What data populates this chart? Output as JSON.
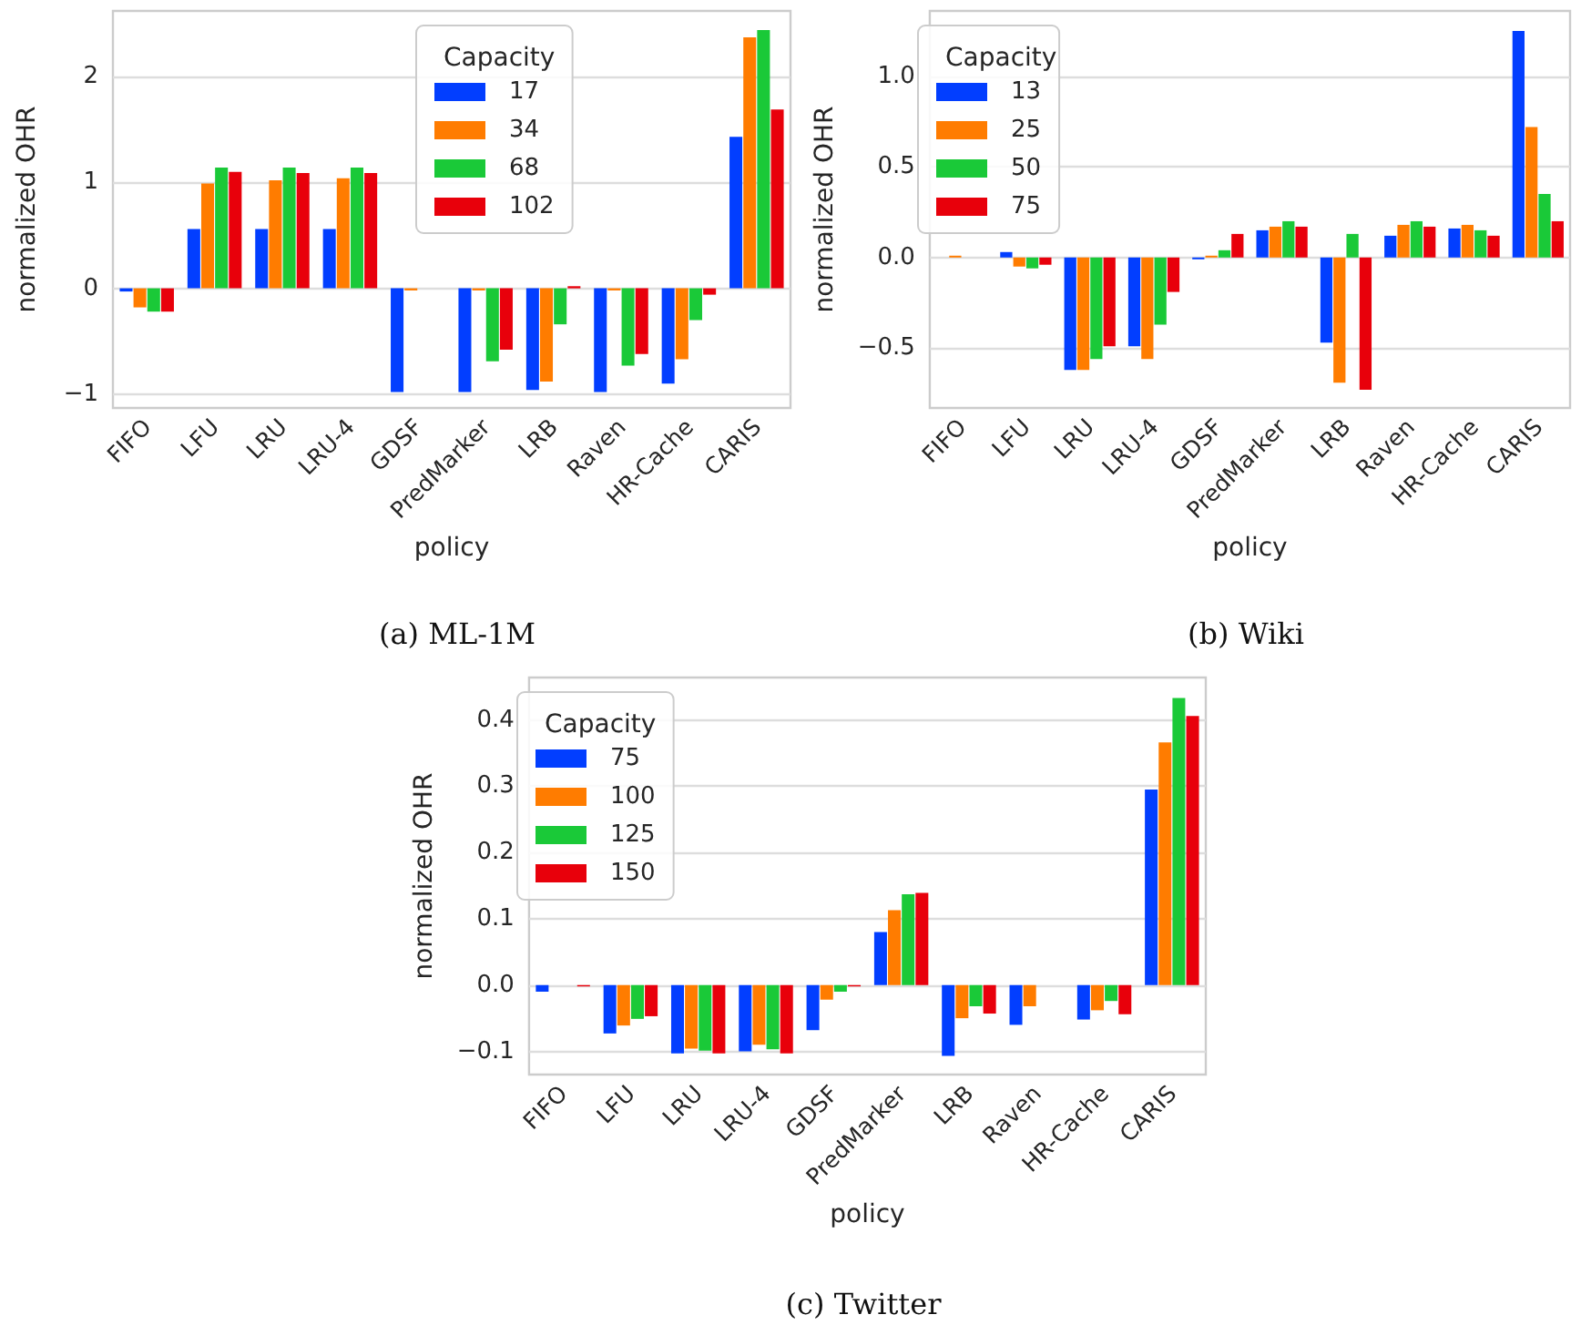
{
  "chart_data": [
    {
      "type": "bar",
      "annotations": [
        "(a) ML-1M"
      ],
      "xlabel": "policy",
      "ylabel": "normalized OHR",
      "legend_title": "Capacity",
      "legend": "top",
      "grid": "y",
      "categories": [
        "FIFO",
        "LFU",
        "LRU",
        "LRU-4",
        "GDSF",
        "PredMarker",
        "LRB",
        "Raven",
        "HR-Cache",
        "CARIS"
      ],
      "ylim": [
        -1.13,
        2.62
      ],
      "yticks": [
        {
          "value": -1,
          "label": "−1"
        },
        0,
        1,
        2
      ],
      "series": [
        {
          "name": "17",
          "color": "#023eff",
          "values": [
            -0.03,
            0.56,
            0.56,
            0.56,
            -0.98,
            -0.98,
            -0.96,
            -0.98,
            -0.9,
            1.43
          ]
        },
        {
          "name": "34",
          "color": "#ff7c00",
          "values": [
            -0.18,
            0.99,
            1.02,
            1.04,
            -0.02,
            -0.02,
            -0.88,
            -0.02,
            -0.67,
            2.37
          ]
        },
        {
          "name": "68",
          "color": "#1ac938",
          "values": [
            -0.22,
            1.14,
            1.14,
            1.14,
            0,
            -0.69,
            -0.34,
            -0.73,
            -0.3,
            2.44
          ]
        },
        {
          "name": "102",
          "color": "#e8000b",
          "values": [
            -0.22,
            1.1,
            1.09,
            1.09,
            0,
            -0.58,
            0.02,
            -0.62,
            -0.06,
            1.69
          ]
        }
      ]
    },
    {
      "type": "bar",
      "annotations": [
        "(b) Wiki"
      ],
      "xlabel": "policy",
      "ylabel": "normalized OHR",
      "legend_title": "Capacity",
      "legend": "top left",
      "grid": "y",
      "categories": [
        "FIFO",
        "LFU",
        "LRU",
        "LRU-4",
        "GDSF",
        "PredMarker",
        "LRB",
        "Raven",
        "HR-Cache",
        "CARIS"
      ],
      "ylim": [
        -0.83,
        1.36
      ],
      "yticks": [
        {
          "value": -0.5,
          "label": "−0.5"
        },
        {
          "value": 0,
          "label": "0.0"
        },
        {
          "value": 0.5,
          "label": "0.5"
        },
        {
          "value": 1,
          "label": "1.0"
        }
      ],
      "series": [
        {
          "name": "13",
          "color": "#023eff",
          "values": [
            0,
            0.03,
            -0.62,
            -0.49,
            -0.01,
            0.15,
            -0.47,
            0.12,
            0.16,
            1.25
          ]
        },
        {
          "name": "25",
          "color": "#ff7c00",
          "values": [
            0.01,
            -0.05,
            -0.62,
            -0.56,
            0.01,
            0.17,
            -0.69,
            0.18,
            0.18,
            0.72
          ]
        },
        {
          "name": "50",
          "color": "#1ac938",
          "values": [
            0,
            -0.06,
            -0.56,
            -0.37,
            0.04,
            0.2,
            0.13,
            0.2,
            0.15,
            0.35
          ]
        },
        {
          "name": "75",
          "color": "#e8000b",
          "values": [
            0,
            -0.04,
            -0.49,
            -0.19,
            0.13,
            0.17,
            -0.73,
            0.17,
            0.12,
            0.2
          ]
        }
      ]
    },
    {
      "type": "bar",
      "annotations": [
        "(c) Twitter"
      ],
      "xlabel": "policy",
      "ylabel": "normalized OHR",
      "legend_title": "Capacity",
      "legend": "top left",
      "grid": "y",
      "categories": [
        "FIFO",
        "LFU",
        "LRU",
        "LRU-4",
        "GDSF",
        "PredMarker",
        "LRB",
        "Raven",
        "HR-Cache",
        "CARIS"
      ],
      "ylim": [
        -0.135,
        0.464
      ],
      "yticks": [
        {
          "value": -0.1,
          "label": "−0.1"
        },
        {
          "value": 0,
          "label": "0.0"
        },
        0.1,
        0.2,
        0.3,
        0.4
      ],
      "series": [
        {
          "name": "75",
          "color": "#023eff",
          "values": [
            -0.01,
            -0.073,
            -0.103,
            -0.1,
            -0.068,
            0.08,
            -0.107,
            -0.06,
            -0.052,
            0.295
          ]
        },
        {
          "name": "100",
          "color": "#ff7c00",
          "values": [
            0,
            -0.061,
            -0.096,
            -0.09,
            -0.022,
            0.113,
            -0.05,
            -0.032,
            -0.038,
            0.366
          ]
        },
        {
          "name": "125",
          "color": "#1ac938",
          "values": [
            0,
            -0.051,
            -0.099,
            -0.097,
            -0.01,
            0.137,
            -0.032,
            0,
            -0.024,
            0.433
          ]
        },
        {
          "name": "150",
          "color": "#e8000b",
          "values": [
            -0.002,
            -0.047,
            -0.103,
            -0.103,
            -0.002,
            0.139,
            -0.043,
            0,
            -0.044,
            0.406
          ]
        }
      ]
    }
  ]
}
